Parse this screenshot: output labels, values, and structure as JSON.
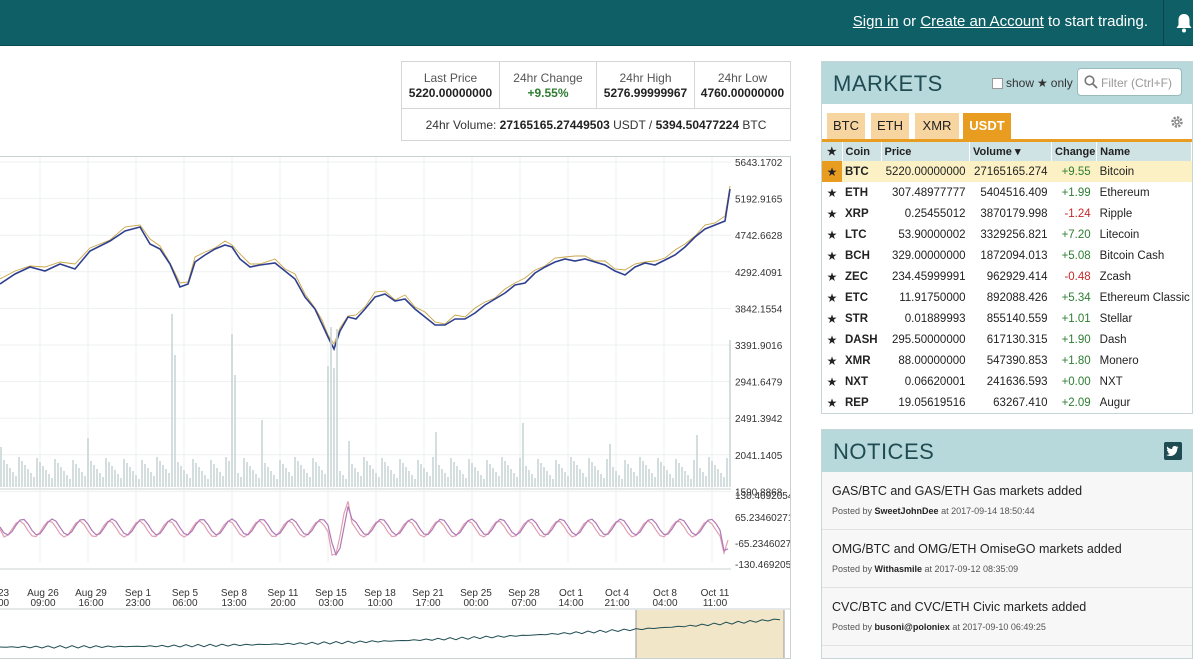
{
  "topbar": {
    "sign_in": "Sign in",
    "or": "or",
    "create_account": "Create an Account",
    "suffix": "to start trading.",
    "bell_icon": "bell-icon"
  },
  "stats": {
    "last_price_label": "Last Price",
    "last_price": "5220.00000000",
    "change_label": "24hr Change",
    "change": "+9.55%",
    "high_label": "24hr High",
    "high": "5276.99999967",
    "low_label": "24hr Low",
    "low": "4760.00000000",
    "volume_label": "24hr Volume:",
    "volume_usdt": "27165165.27449503",
    "volume_usdt_unit": "USDT /",
    "volume_btc": "5394.50477224",
    "volume_btc_unit": "BTC"
  },
  "chart": {
    "price_axis": [
      "5643.1702",
      "5192.9165",
      "4742.6628",
      "4292.4091",
      "3842.1554",
      "3391.9016",
      "2941.6479",
      "2491.3942",
      "2041.1405",
      "1590.8868"
    ],
    "osc_axis": [
      "130.4692054",
      "65.23460271",
      "-65.2346027",
      "-130.469205"
    ],
    "time_axis": [
      {
        "d": "23",
        "t": "00"
      },
      {
        "d": "Aug 26",
        "t": "09:00"
      },
      {
        "d": "Aug 29",
        "t": "16:00"
      },
      {
        "d": "Sep 1",
        "t": "23:00"
      },
      {
        "d": "Sep 5",
        "t": "06:00"
      },
      {
        "d": "Sep 8",
        "t": "13:00"
      },
      {
        "d": "Sep 11",
        "t": "20:00"
      },
      {
        "d": "Sep 15",
        "t": "03:00"
      },
      {
        "d": "Sep 18",
        "t": "10:00"
      },
      {
        "d": "Sep 21",
        "t": "17:00"
      },
      {
        "d": "Sep 25",
        "t": "00:00"
      },
      {
        "d": "Sep 28",
        "t": "07:00"
      },
      {
        "d": "Oct 1",
        "t": "14:00"
      },
      {
        "d": "Oct 4",
        "t": "21:00"
      },
      {
        "d": "Oct 8",
        "t": "04:00"
      },
      {
        "d": "Oct 11",
        "t": "11:00"
      }
    ],
    "colors": {
      "price": "#c9a646",
      "ma": "#2f3f8f",
      "volume": "#c9d6d6",
      "osc1": "#b078b8",
      "osc2": "#e0a0b0",
      "nav": "#1e4c52",
      "nav_sel": "#f1e6c8"
    }
  },
  "markets": {
    "title": "MARKETS",
    "show": "show",
    "star": "★",
    "only": "only",
    "filter_placeholder": "Filter (Ctrl+F)",
    "tabs": [
      "BTC",
      "ETH",
      "XMR",
      "USDT"
    ],
    "active_tab": "USDT",
    "columns": {
      "coin": "Coin",
      "price": "Price",
      "volume": "Volume ▾",
      "change": "Change",
      "name": "Name"
    },
    "rows": [
      {
        "coin": "BTC",
        "price": "5220.00000000",
        "volume": "27165165.274",
        "change": "+9.55",
        "name": "Bitcoin",
        "dir": "up"
      },
      {
        "coin": "ETH",
        "price": "307.48977777",
        "volume": "5404516.409",
        "change": "+1.99",
        "name": "Ethereum",
        "dir": "up"
      },
      {
        "coin": "XRP",
        "price": "0.25455012",
        "volume": "3870179.998",
        "change": "-1.24",
        "name": "Ripple",
        "dir": "down"
      },
      {
        "coin": "LTC",
        "price": "53.90000002",
        "volume": "3329256.821",
        "change": "+7.20",
        "name": "Litecoin",
        "dir": "up"
      },
      {
        "coin": "BCH",
        "price": "329.00000000",
        "volume": "1872094.013",
        "change": "+5.08",
        "name": "Bitcoin Cash",
        "dir": "up"
      },
      {
        "coin": "ZEC",
        "price": "234.45999991",
        "volume": "962929.414",
        "change": "-0.48",
        "name": "Zcash",
        "dir": "down"
      },
      {
        "coin": "ETC",
        "price": "11.91750000",
        "volume": "892088.426",
        "change": "+5.34",
        "name": "Ethereum Classic",
        "dir": "up"
      },
      {
        "coin": "STR",
        "price": "0.01889993",
        "volume": "855140.559",
        "change": "+1.01",
        "name": "Stellar",
        "dir": "up"
      },
      {
        "coin": "DASH",
        "price": "295.50000000",
        "volume": "617130.315",
        "change": "+1.90",
        "name": "Dash",
        "dir": "up"
      },
      {
        "coin": "XMR",
        "price": "88.00000000",
        "volume": "547390.853",
        "change": "+1.80",
        "name": "Monero",
        "dir": "up"
      },
      {
        "coin": "NXT",
        "price": "0.06620001",
        "volume": "241636.593",
        "change": "+0.00",
        "name": "NXT",
        "dir": "up"
      },
      {
        "coin": "REP",
        "price": "19.05619516",
        "volume": "63267.410",
        "change": "+2.09",
        "name": "Augur",
        "dir": "up"
      }
    ]
  },
  "notices": {
    "title": "NOTICES",
    "items": [
      {
        "title": "GAS/BTC and GAS/ETH Gas markets added",
        "posted_by": "Posted by",
        "author": "SweetJohnDee",
        "at": "at 2017-09-14 18:50:44"
      },
      {
        "title": "OMG/BTC and OMG/ETH OmiseGO markets added",
        "posted_by": "Posted by",
        "author": "Withasmile",
        "at": "at 2017-09-12 08:35:09"
      },
      {
        "title": "CVC/BTC and CVC/ETH Civic markets added",
        "posted_by": "Posted by",
        "author": "busoni@poloniex",
        "at": "at 2017-09-10 06:49:25"
      }
    ]
  }
}
